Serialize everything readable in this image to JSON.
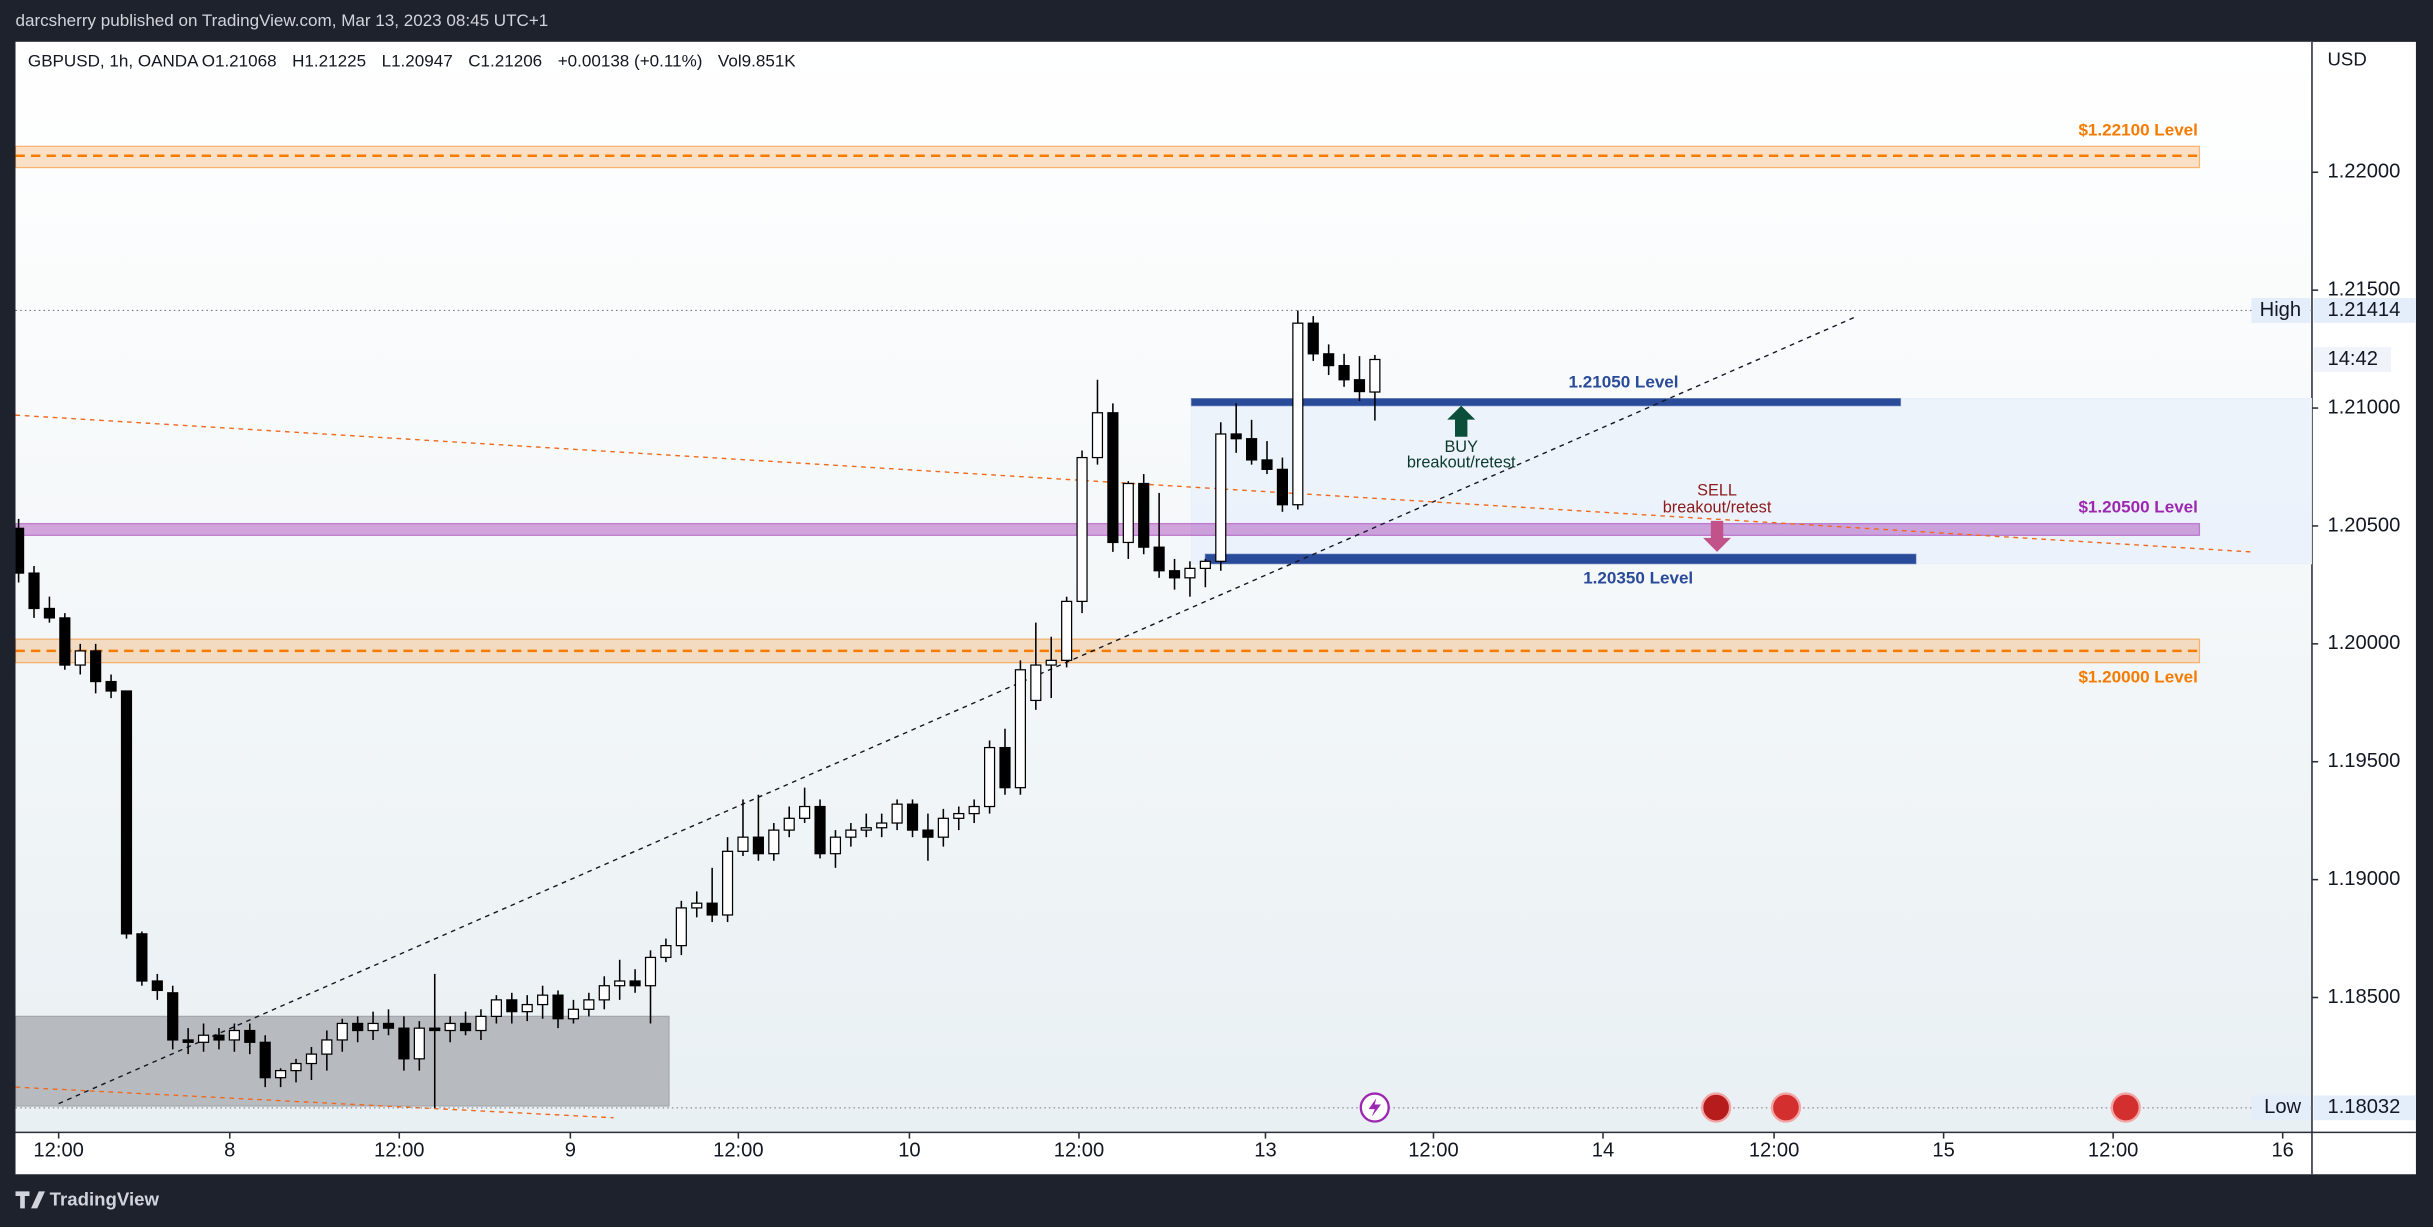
{
  "publisher": "darcsherry published on TradingView.com, Mar 13, 2023 08:45 UTC+1",
  "footer": "TradingView",
  "chart_data": {
    "type": "candlestick",
    "symbol": "GBPUSD, 1h, OANDA",
    "legend_values": [
      "O1.21068",
      "H1.21225",
      "L1.20947",
      "C1.21206",
      "+0.00138 (+0.11%)",
      "Vol9.851K"
    ],
    "currency": "USD",
    "countdown": "14:42",
    "grid": false,
    "up_color": "#ffffff",
    "down_color": "#000000",
    "wick_color": "#000000",
    "ylim": [
      1.17928,
      1.22553
    ],
    "yticks": [
      {
        "value": 1.185,
        "label": "1.18500"
      },
      {
        "value": 1.19,
        "label": "1.19000"
      },
      {
        "value": 1.195,
        "label": "1.19500"
      },
      {
        "value": 1.2,
        "label": "1.20000"
      },
      {
        "value": 1.205,
        "label": "1.20500"
      },
      {
        "value": 1.21,
        "label": "1.21000"
      },
      {
        "value": 1.215,
        "label": "1.21500"
      },
      {
        "value": 1.22,
        "label": "1.22000"
      }
    ],
    "xlim": [
      -0.2,
      148.8
    ],
    "xticks": [
      {
        "value": 2.6,
        "label": "12:00"
      },
      {
        "value": 13.7,
        "label": "8"
      },
      {
        "value": 24.7,
        "label": "12:00"
      },
      {
        "value": 35.8,
        "label": "9"
      },
      {
        "value": 46.7,
        "label": "12:00"
      },
      {
        "value": 57.8,
        "label": "10"
      },
      {
        "value": 68.8,
        "label": "12:00"
      },
      {
        "value": 80.9,
        "label": "13"
      },
      {
        "value": 91.8,
        "label": "12:00"
      },
      {
        "value": 102.8,
        "label": "14"
      },
      {
        "value": 113.9,
        "label": "12:00"
      },
      {
        "value": 124.9,
        "label": "15"
      },
      {
        "value": 135.9,
        "label": "12:00"
      },
      {
        "value": 146.9,
        "label": "16"
      }
    ],
    "high": {
      "label": "High",
      "value": 1.21414
    },
    "low": {
      "label": "Low",
      "value": 1.18032
    },
    "ohlc": [
      [
        1.2049,
        1.2053,
        1.2026,
        1.203
      ],
      [
        1.203,
        1.2033,
        1.2011,
        1.2015
      ],
      [
        1.2015,
        1.202,
        1.2009,
        1.2011
      ],
      [
        1.2011,
        1.2013,
        1.1989,
        1.1991
      ],
      [
        1.1991,
        1.2,
        1.1987,
        1.1997
      ],
      [
        1.1997,
        1.2,
        1.1979,
        1.1984
      ],
      [
        1.1984,
        1.1987,
        1.1977,
        1.198
      ],
      [
        1.198,
        1.198,
        1.1875,
        1.1877
      ],
      [
        1.1877,
        1.1878,
        1.1855,
        1.1857
      ],
      [
        1.1857,
        1.186,
        1.1849,
        1.1853
      ],
      [
        1.1852,
        1.1855,
        1.1828,
        1.1832
      ],
      [
        1.1832,
        1.1837,
        1.1826,
        1.1831
      ],
      [
        1.1831,
        1.1839,
        1.1827,
        1.1834
      ],
      [
        1.1834,
        1.1837,
        1.1828,
        1.1832
      ],
      [
        1.1832,
        1.1839,
        1.1827,
        1.1836
      ],
      [
        1.1836,
        1.1839,
        1.1826,
        1.1831
      ],
      [
        1.1831,
        1.1834,
        1.1812,
        1.1816
      ],
      [
        1.1816,
        1.182,
        1.1812,
        1.1819
      ],
      [
        1.1819,
        1.1824,
        1.1814,
        1.1822
      ],
      [
        1.1822,
        1.1829,
        1.1815,
        1.1826
      ],
      [
        1.1826,
        1.1836,
        1.1819,
        1.1832
      ],
      [
        1.1832,
        1.1841,
        1.1827,
        1.1839
      ],
      [
        1.1839,
        1.1842,
        1.1831,
        1.1836
      ],
      [
        1.1836,
        1.1844,
        1.1832,
        1.1839
      ],
      [
        1.1839,
        1.1845,
        1.1834,
        1.1837
      ],
      [
        1.1837,
        1.1842,
        1.1819,
        1.1824
      ],
      [
        1.1824,
        1.184,
        1.1819,
        1.1837
      ],
      [
        1.1837,
        1.186,
        1.18032,
        1.1836
      ],
      [
        1.1836,
        1.1842,
        1.1831,
        1.1839
      ],
      [
        1.1839,
        1.1844,
        1.1834,
        1.1836
      ],
      [
        1.1836,
        1.1845,
        1.1832,
        1.1842
      ],
      [
        1.1842,
        1.1851,
        1.1839,
        1.1849
      ],
      [
        1.1849,
        1.1852,
        1.1839,
        1.1844
      ],
      [
        1.1844,
        1.1851,
        1.184,
        1.1847
      ],
      [
        1.1847,
        1.1855,
        1.1841,
        1.1851
      ],
      [
        1.1851,
        1.1853,
        1.1837,
        1.1841
      ],
      [
        1.1841,
        1.1849,
        1.1839,
        1.1845
      ],
      [
        1.1845,
        1.1852,
        1.1842,
        1.1849
      ],
      [
        1.1849,
        1.1859,
        1.1845,
        1.1855
      ],
      [
        1.1855,
        1.1866,
        1.1849,
        1.1857
      ],
      [
        1.1857,
        1.1862,
        1.1852,
        1.1855
      ],
      [
        1.1855,
        1.187,
        1.1839,
        1.1867
      ],
      [
        1.1867,
        1.1875,
        1.1865,
        1.1872
      ],
      [
        1.1872,
        1.1891,
        1.1868,
        1.1888
      ],
      [
        1.1888,
        1.1895,
        1.1884,
        1.189
      ],
      [
        1.189,
        1.1905,
        1.1882,
        1.1885
      ],
      [
        1.1885,
        1.1918,
        1.1882,
        1.1912
      ],
      [
        1.1912,
        1.1934,
        1.191,
        1.1918
      ],
      [
        1.1918,
        1.1936,
        1.1908,
        1.1911
      ],
      [
        1.1911,
        1.1924,
        1.1908,
        1.1921
      ],
      [
        1.1921,
        1.1931,
        1.1918,
        1.1926
      ],
      [
        1.1926,
        1.1939,
        1.1924,
        1.1931
      ],
      [
        1.1931,
        1.1934,
        1.1909,
        1.1911
      ],
      [
        1.1911,
        1.1921,
        1.1905,
        1.1918
      ],
      [
        1.1918,
        1.1924,
        1.1914,
        1.1921
      ],
      [
        1.1921,
        1.1928,
        1.1918,
        1.1922
      ],
      [
        1.1922,
        1.1928,
        1.1918,
        1.1924
      ],
      [
        1.1924,
        1.1934,
        1.1921,
        1.1932
      ],
      [
        1.1932,
        1.1934,
        1.1918,
        1.1921
      ],
      [
        1.1921,
        1.1928,
        1.1908,
        1.1918
      ],
      [
        1.1918,
        1.193,
        1.1914,
        1.1926
      ],
      [
        1.1926,
        1.1931,
        1.1921,
        1.1928
      ],
      [
        1.1928,
        1.1934,
        1.1924,
        1.1931
      ],
      [
        1.1931,
        1.1959,
        1.1928,
        1.1956
      ],
      [
        1.1956,
        1.1964,
        1.1936,
        1.1939
      ],
      [
        1.1939,
        1.1993,
        1.1936,
        1.1989
      ],
      [
        1.1976,
        1.2009,
        1.1972,
        1.1991
      ],
      [
        1.1991,
        1.2003,
        1.1977,
        1.1993
      ],
      [
        1.1993,
        1.202,
        1.199,
        1.2018
      ],
      [
        1.2018,
        1.2082,
        1.2013,
        1.2079
      ],
      [
        1.2079,
        1.2112,
        1.2076,
        1.2098
      ],
      [
        1.2098,
        1.2102,
        1.2039,
        1.2043
      ],
      [
        1.2043,
        1.2069,
        1.2036,
        1.2068
      ],
      [
        1.2068,
        1.2072,
        1.2038,
        1.2041
      ],
      [
        1.2041,
        1.2064,
        1.2028,
        1.2031
      ],
      [
        1.2031,
        1.2036,
        1.2023,
        1.2028
      ],
      [
        1.2028,
        1.2035,
        1.202,
        1.2032
      ],
      [
        1.2032,
        1.2036,
        1.2024,
        1.2035
      ],
      [
        1.2035,
        1.2094,
        1.2031,
        1.2089
      ],
      [
        1.2089,
        1.2102,
        1.2081,
        1.2087
      ],
      [
        1.2087,
        1.2095,
        1.2076,
        1.2078
      ],
      [
        1.2078,
        1.2086,
        1.2072,
        1.2074
      ],
      [
        1.2074,
        1.2079,
        1.2056,
        1.2059
      ],
      [
        1.2059,
        1.21414,
        1.2057,
        1.2136
      ],
      [
        1.2136,
        1.2139,
        1.212,
        1.2123
      ],
      [
        1.2123,
        1.2127,
        1.2114,
        1.2118
      ],
      [
        1.2118,
        1.2123,
        1.2109,
        1.2112
      ],
      [
        1.2112,
        1.2122,
        1.2103,
        1.2107
      ],
      [
        1.21068,
        1.21225,
        1.20947,
        1.21206
      ]
    ],
    "boxes": [
      {
        "start": -0.2,
        "end": 42.2,
        "top": 1.1842,
        "bottom": 1.1804,
        "color": "#a5a8ad"
      },
      {
        "start": 76.1,
        "end": 148.8,
        "top": 1.2104,
        "bottom": 1.2034,
        "color": "#e8f0fb"
      }
    ],
    "zones": [
      {
        "label": "$1.22100 Level",
        "start": -0.2,
        "end": 141.5,
        "top": 1.2211,
        "bottom": 1.2202,
        "line": 1.2207,
        "color": "#f57c00",
        "label_side": "above"
      },
      {
        "label": "$1.20000 Level",
        "start": -0.2,
        "end": 141.5,
        "top": 1.2002,
        "bottom": 1.1992,
        "line": 1.1997,
        "color": "#f57c00",
        "label_side": "below"
      },
      {
        "label": "$1.20500 Level",
        "start": -0.2,
        "end": 141.5,
        "top": 1.2051,
        "bottom": 1.2046,
        "color": "#9c27b0",
        "label_side": "above"
      },
      {
        "label": "1.21050 Level",
        "start": 76.1,
        "end": 122.1,
        "top": 1.2104,
        "bottom": 1.2101,
        "color": "#2a4a9a",
        "label_side": "above"
      },
      {
        "label": "1.20350 Level",
        "start": 77.0,
        "end": 123.1,
        "top": 1.2038,
        "bottom": 1.2034,
        "color": "#2a4a9a",
        "label_side": "below"
      }
    ],
    "trendlines": [
      {
        "from": [
          2.6,
          1.1805
        ],
        "to": [
          119.3,
          1.2139
        ],
        "color": "#131722"
      },
      {
        "from": [
          -0.2,
          1.2097
        ],
        "to": [
          144.8,
          1.2039
        ],
        "color": "#f06a1e"
      },
      {
        "from": [
          -0.2,
          1.1812
        ],
        "to": [
          38.6,
          1.1799
        ],
        "color": "#f06a1e"
      }
    ],
    "signals": [
      {
        "direction": "up",
        "at": [
          93.6,
          1.2101
        ],
        "text": [
          "BUY",
          "breakout/retest"
        ],
        "color": "#0b4f3a",
        "text_color": "#0b3a2c"
      },
      {
        "direction": "down",
        "at": [
          110.2,
          1.2039
        ],
        "text": [
          "SELL",
          "breakout/retest"
        ],
        "color": "#c2538a",
        "text_color": "#8b1a1a"
      }
    ]
  }
}
